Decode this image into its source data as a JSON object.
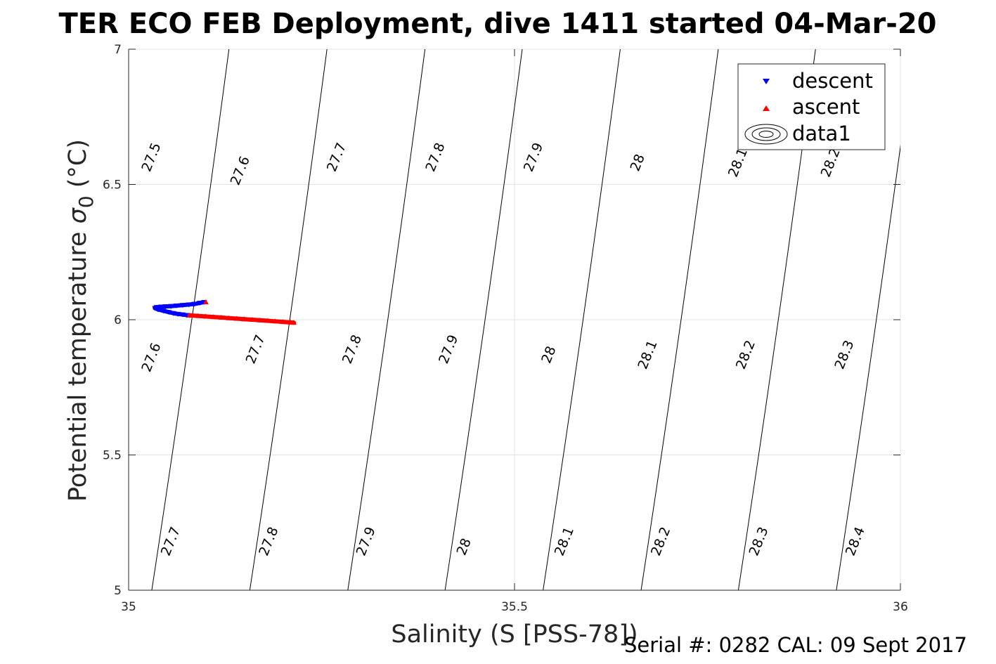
{
  "chart_data": {
    "type": "scatter",
    "title": "TER ECO FEB Deployment, dive 1411 started 04-Mar-20",
    "xlabel": "Salinity (S [PSS-78])",
    "ylabel_main": "Potential temperature ",
    "ylabel_sigma": "σ",
    "ylabel_sub": "0",
    "ylabel_unit": " (°C)",
    "xlim": [
      35,
      36
    ],
    "ylim": [
      5,
      7
    ],
    "xticks": [
      35,
      35.5,
      36
    ],
    "xtick_labels": [
      "35",
      "35.5",
      "36"
    ],
    "yticks": [
      5,
      5.5,
      6,
      6.5,
      7
    ],
    "ytick_labels": [
      "5",
      "5.5",
      "6",
      "6.5",
      "7"
    ],
    "grid": true,
    "legend_position": "top-right",
    "legend": [
      "descent",
      "ascent",
      "data1"
    ],
    "isopycnal_lines": [
      {
        "x_at_5": 35.03,
        "x_at_7": 35.13
      },
      {
        "x_at_5": 35.157,
        "x_at_7": 35.257
      },
      {
        "x_at_5": 35.284,
        "x_at_7": 35.384
      },
      {
        "x_at_5": 35.41,
        "x_at_7": 35.51
      },
      {
        "x_at_5": 35.537,
        "x_at_7": 35.637
      },
      {
        "x_at_5": 35.664,
        "x_at_7": 35.764
      },
      {
        "x_at_5": 35.79,
        "x_at_7": 35.89
      },
      {
        "x_at_5": 35.917,
        "x_at_7": 36.017
      },
      {
        "x_at_5": 36.044,
        "x_at_7": 36.144
      }
    ],
    "contour_labels": [
      {
        "text": "27.5",
        "x": 35.03,
        "y": 6.6
      },
      {
        "text": "27.6",
        "x": 35.145,
        "y": 6.55
      },
      {
        "text": "27.7",
        "x": 35.27,
        "y": 6.6
      },
      {
        "text": "27.8",
        "x": 35.398,
        "y": 6.6
      },
      {
        "text": "27.9",
        "x": 35.525,
        "y": 6.6
      },
      {
        "text": "28",
        "x": 35.66,
        "y": 6.58
      },
      {
        "text": "28.1",
        "x": 35.79,
        "y": 6.58
      },
      {
        "text": "28.2",
        "x": 35.91,
        "y": 6.58
      },
      {
        "text": "27.6",
        "x": 35.03,
        "y": 5.86
      },
      {
        "text": "27.7",
        "x": 35.165,
        "y": 5.89
      },
      {
        "text": "27.8",
        "x": 35.29,
        "y": 5.89
      },
      {
        "text": "27.9",
        "x": 35.415,
        "y": 5.89
      },
      {
        "text": "28",
        "x": 35.545,
        "y": 5.87
      },
      {
        "text": "28.1",
        "x": 35.673,
        "y": 5.87
      },
      {
        "text": "28.2",
        "x": 35.8,
        "y": 5.87
      },
      {
        "text": "28.3",
        "x": 35.928,
        "y": 5.87
      },
      {
        "text": "27.7",
        "x": 35.055,
        "y": 5.18
      },
      {
        "text": "27.8",
        "x": 35.182,
        "y": 5.18
      },
      {
        "text": "27.9",
        "x": 35.308,
        "y": 5.18
      },
      {
        "text": "28",
        "x": 35.435,
        "y": 5.16
      },
      {
        "text": "28.1",
        "x": 35.565,
        "y": 5.18
      },
      {
        "text": "28.2",
        "x": 35.69,
        "y": 5.18
      },
      {
        "text": "28.3",
        "x": 35.817,
        "y": 5.18
      },
      {
        "text": "28.4",
        "x": 35.942,
        "y": 5.18
      }
    ],
    "series": [
      {
        "name": "descent",
        "color": "#0000ff",
        "marker": "triangle-down",
        "x": [
          35.098,
          35.092,
          35.085,
          35.078,
          35.07,
          35.062,
          35.055,
          35.048,
          35.042,
          35.036,
          35.034,
          35.038,
          35.045,
          35.052,
          35.058,
          35.064,
          35.07,
          35.075,
          35.079
        ],
        "y": [
          6.065,
          6.062,
          6.058,
          6.056,
          6.054,
          6.052,
          6.05,
          6.049,
          6.048,
          6.046,
          6.043,
          6.038,
          6.033,
          6.028,
          6.024,
          6.021,
          6.019,
          6.017,
          6.016
        ]
      },
      {
        "name": "ascent",
        "color": "#ff0000",
        "marker": "triangle-up",
        "x": [
          35.079,
          35.09,
          35.1,
          35.11,
          35.12,
          35.13,
          35.14,
          35.15,
          35.16,
          35.17,
          35.18,
          35.19,
          35.2,
          35.21,
          35.214,
          35.1
        ],
        "y": [
          6.016,
          6.014,
          6.012,
          6.01,
          6.008,
          6.006,
          6.004,
          6.002,
          6.0,
          5.998,
          5.996,
          5.994,
          5.992,
          5.99,
          5.989,
          6.065
        ]
      }
    ]
  },
  "footer": {
    "serial_text": "Serial #: 0282  CAL: 09 Sept 2017"
  }
}
